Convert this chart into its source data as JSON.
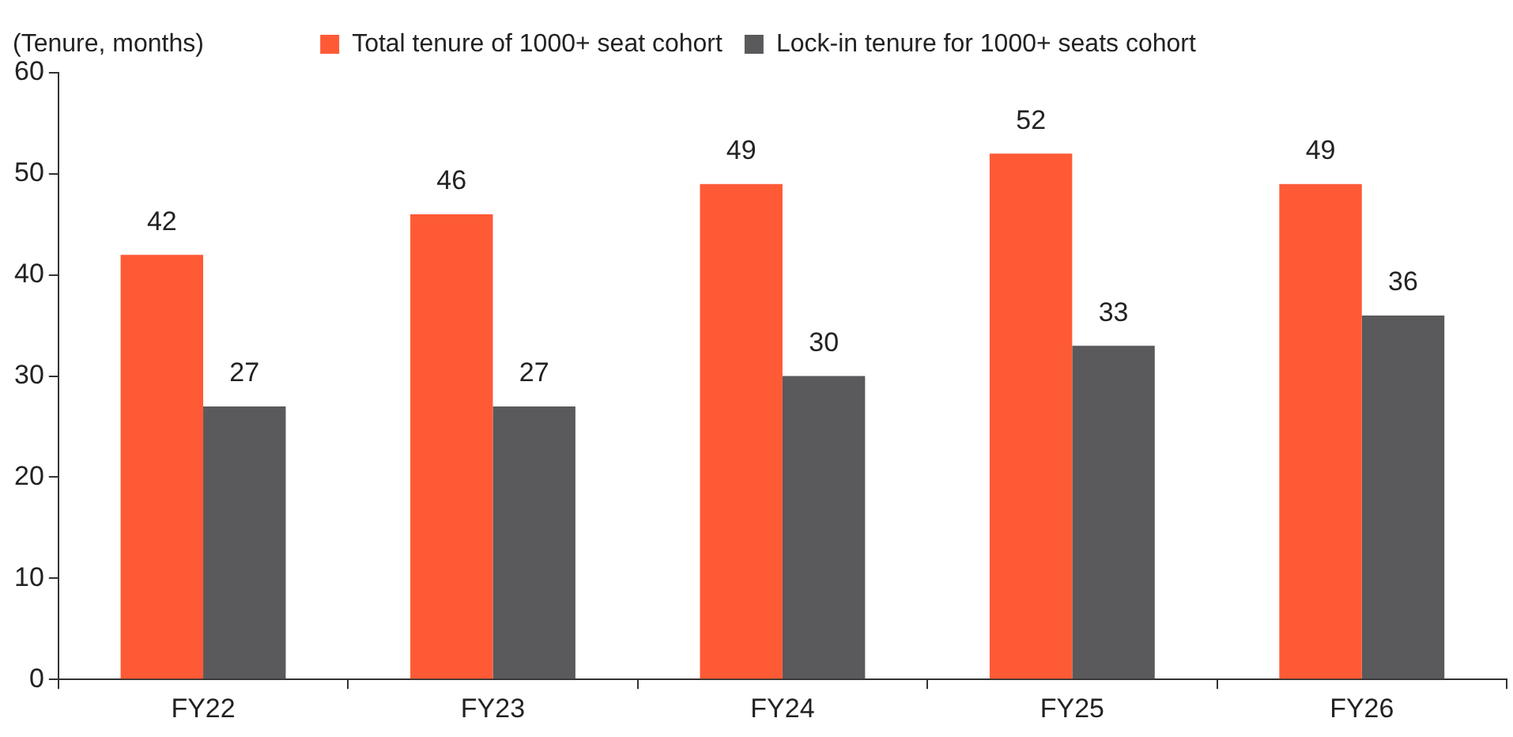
{
  "chart_data": {
    "type": "bar",
    "ylabel": "(Tenure, months)",
    "categories": [
      "FY22",
      "FY23",
      "FY24",
      "FY25",
      "FY26"
    ],
    "series": [
      {
        "name": "Total tenure of 1000+ seat cohort",
        "color": "#ff5a36",
        "values": [
          42,
          46,
          49,
          52,
          49
        ]
      },
      {
        "name": "Lock-in tenure for 1000+ seats cohort",
        "color": "#5a5a5c",
        "values": [
          27,
          27,
          30,
          33,
          36
        ]
      }
    ],
    "ylim": [
      0,
      60
    ],
    "yticks": [
      0,
      10,
      20,
      30,
      40,
      50,
      60
    ],
    "grid": false,
    "legend": "top",
    "data_labels": true
  }
}
